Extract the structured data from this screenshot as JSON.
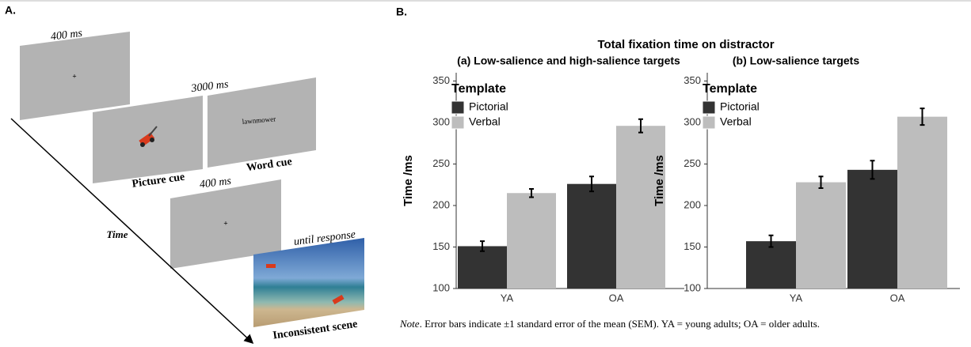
{
  "panel_a": {
    "label": "A.",
    "fixation_duration": "400 ms",
    "cue_duration": "3000 ms",
    "word": "lawnmower",
    "picture_cue": "Picture cue",
    "word_cue": "Word cue",
    "second_fixation_duration": "400 ms",
    "time": "Time",
    "scene_duration": "until response",
    "scene_label": "Inconsistent scene"
  },
  "panel_b": {
    "label": "B.",
    "title": "Total fixation time on distractor"
  },
  "chart_data": [
    {
      "type": "bar",
      "title": "(a) Low-salience and high-salience targets",
      "y_label": "Time /ms",
      "categories": [
        "YA",
        "OA"
      ],
      "legend_title": "Template",
      "legend": "top-left",
      "ylim": [
        100,
        360
      ],
      "yticks": [
        100,
        150,
        200,
        250,
        300,
        350
      ],
      "series": [
        {
          "name": "Pictorial",
          "color": "#333333",
          "values": [
            151,
            226
          ],
          "errors": [
            6,
            9
          ]
        },
        {
          "name": "Verbal",
          "color": "#bdbdbd",
          "values": [
            215,
            296
          ],
          "errors": [
            5,
            8
          ]
        }
      ]
    },
    {
      "type": "bar",
      "title": "(b) Low-salience targets",
      "y_label": "Time /ms",
      "categories": [
        "YA",
        "OA"
      ],
      "legend_title": "Template",
      "legend": "top-left",
      "ylim": [
        100,
        360
      ],
      "yticks": [
        100,
        150,
        200,
        250,
        300,
        350
      ],
      "series": [
        {
          "name": "Pictorial",
          "color": "#333333",
          "values": [
            157,
            243
          ],
          "errors": [
            7,
            11
          ]
        },
        {
          "name": "Verbal",
          "color": "#bdbdbd",
          "values": [
            228,
            307
          ],
          "errors": [
            7,
            10
          ]
        }
      ]
    }
  ],
  "note": {
    "lead": "Note",
    "text": ".   Error bars indicate ±1 standard error of the mean (SEM). YA = young adults; OA = older adults."
  }
}
